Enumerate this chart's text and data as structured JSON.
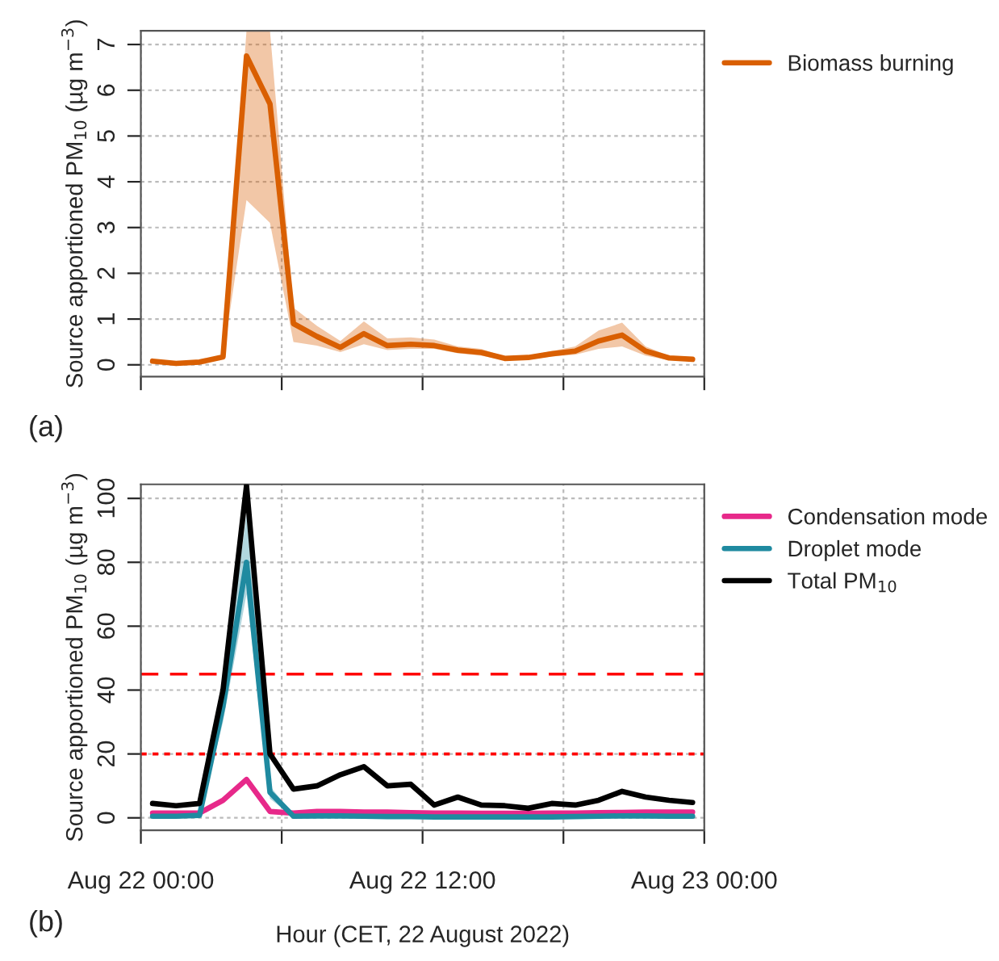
{
  "chart_data": [
    {
      "type": "line",
      "ylabel": "Source apportioned PM$_{10}$ (µg m$^{−3}$)",
      "annotations": [
        "(a)"
      ],
      "x": [
        "2022-08-22T00:30",
        "2022-08-22T01:30",
        "2022-08-22T02:30",
        "2022-08-22T03:30",
        "2022-08-22T04:30",
        "2022-08-22T05:30",
        "2022-08-22T06:30",
        "2022-08-22T07:30",
        "2022-08-22T08:30",
        "2022-08-22T09:30",
        "2022-08-22T10:30",
        "2022-08-22T11:30",
        "2022-08-22T12:30",
        "2022-08-22T13:30",
        "2022-08-22T14:30",
        "2022-08-22T15:30",
        "2022-08-22T16:30",
        "2022-08-22T17:30",
        "2022-08-22T18:30",
        "2022-08-22T19:30",
        "2022-08-22T20:30",
        "2022-08-22T21:30",
        "2022-08-22T22:30",
        "2022-08-22T23:30"
      ],
      "series": [
        {
          "name": "Biomass burning",
          "color": "#d95f02",
          "values": [
            0.08,
            0.03,
            0.06,
            0.17,
            6.75,
            5.7,
            0.9,
            0.62,
            0.38,
            0.68,
            0.42,
            0.45,
            0.42,
            0.32,
            0.27,
            0.14,
            0.16,
            0.24,
            0.3,
            0.52,
            0.65,
            0.3,
            0.15,
            0.12
          ],
          "lower": [
            0.05,
            0.02,
            0.04,
            0.15,
            3.6,
            3.1,
            0.5,
            0.42,
            0.28,
            0.45,
            0.32,
            0.35,
            0.35,
            0.25,
            0.2,
            0.1,
            0.12,
            0.18,
            0.22,
            0.35,
            0.4,
            0.2,
            0.1,
            0.09
          ],
          "upper": [
            0.1,
            0.05,
            0.08,
            0.2,
            7.3,
            7.3,
            1.25,
            0.85,
            0.52,
            0.95,
            0.58,
            0.6,
            0.55,
            0.4,
            0.35,
            0.18,
            0.2,
            0.3,
            0.4,
            0.75,
            0.92,
            0.4,
            0.2,
            0.15
          ]
        }
      ],
      "xlim": [
        "2022-08-22T00:00",
        "2022-08-23T00:00"
      ],
      "xticks": [
        {
          "value": "2022-08-22T00:00",
          "label": null
        },
        {
          "value": "2022-08-22T06:00",
          "label": null
        },
        {
          "value": "2022-08-22T12:00",
          "label": null
        },
        {
          "value": "2022-08-22T18:00",
          "label": null
        },
        {
          "value": "2022-08-23T00:00",
          "label": null
        }
      ],
      "ylim": [
        -0.26,
        7.3
      ],
      "yticks": [
        0,
        1,
        2,
        3,
        4,
        5,
        6,
        7
      ],
      "tick_labels": "y",
      "grid": true,
      "legend": "top right",
      "line_style": "solid"
    },
    {
      "type": "line",
      "xlabel": "Hour (CET, 22 August 2022)",
      "ylabel": "Source apportioned PM$_{10}$ (µg m$^{−3}$)",
      "annotations": [
        "(b)"
      ],
      "x": [
        "2022-08-22T00:30",
        "2022-08-22T01:30",
        "2022-08-22T02:30",
        "2022-08-22T03:30",
        "2022-08-22T04:30",
        "2022-08-22T05:30",
        "2022-08-22T06:30",
        "2022-08-22T07:30",
        "2022-08-22T08:30",
        "2022-08-22T09:30",
        "2022-08-22T10:30",
        "2022-08-22T11:30",
        "2022-08-22T12:30",
        "2022-08-22T13:30",
        "2022-08-22T14:30",
        "2022-08-22T15:30",
        "2022-08-22T16:30",
        "2022-08-22T17:30",
        "2022-08-22T18:30",
        "2022-08-22T19:30",
        "2022-08-22T20:30",
        "2022-08-22T21:30",
        "2022-08-22T22:30",
        "2022-08-22T23:30"
      ],
      "series": [
        {
          "name": "Condensation mode",
          "color": "#e7298a",
          "values": [
            1.5,
            1.5,
            1.5,
            5.5,
            12,
            2,
            1.5,
            2,
            2,
            1.8,
            1.8,
            1.6,
            1.5,
            1.5,
            1.4,
            1.4,
            1.4,
            1.5,
            1.5,
            1.6,
            1.7,
            1.8,
            1.8,
            1.8
          ]
        },
        {
          "name": "Droplet mode",
          "color": "#1f8aa0",
          "values": [
            0.5,
            0.5,
            0.8,
            35,
            80,
            8,
            0.5,
            0.6,
            0.6,
            0.5,
            0.4,
            0.4,
            0.3,
            0.3,
            0.3,
            0.3,
            0.3,
            0.3,
            0.4,
            0.5,
            0.6,
            0.6,
            0.5,
            0.5
          ],
          "lower": [
            0.2,
            0.2,
            0.5,
            30,
            70,
            6,
            0.2,
            0.3,
            0.3,
            0.2,
            0.1,
            0.1,
            0.1,
            0.1,
            0.1,
            0.1,
            0.1,
            0.1,
            0.1,
            0.2,
            0.3,
            0.3,
            0.2,
            0.2
          ],
          "upper": [
            0.8,
            0.8,
            1.1,
            40,
            95,
            10,
            0.8,
            0.9,
            0.9,
            0.8,
            0.7,
            0.7,
            0.6,
            0.6,
            0.6,
            0.6,
            0.6,
            0.6,
            0.7,
            0.8,
            0.9,
            0.9,
            0.8,
            0.8
          ]
        },
        {
          "name": "Total PM$_{10}$",
          "color": "#000000",
          "values": [
            4.5,
            3.8,
            4.5,
            40,
            104,
            20,
            9,
            10,
            13.5,
            16,
            10,
            10.5,
            4,
            6.5,
            4,
            3.8,
            3,
            4.5,
            4,
            5.5,
            8.3,
            6.5,
            5.5,
            4.8
          ]
        }
      ],
      "ref_lines": [
        {
          "axis": "y",
          "value": 45,
          "label": null,
          "color": "#ff0000",
          "line_style": "dashed"
        },
        {
          "axis": "y",
          "value": 20,
          "label": null,
          "color": "#ff0000",
          "line_style": "dotted"
        }
      ],
      "xlim": [
        "2022-08-22T00:00",
        "2022-08-23T00:00"
      ],
      "xticks": [
        {
          "value": "2022-08-22T00:00",
          "label": "Aug 22 00:00"
        },
        {
          "value": "2022-08-22T06:00",
          "label": null
        },
        {
          "value": "2022-08-22T12:00",
          "label": "Aug 22 12:00"
        },
        {
          "value": "2022-08-22T18:00",
          "label": null
        },
        {
          "value": "2022-08-23T00:00",
          "label": "Aug 23 00:00"
        }
      ],
      "ylim": [
        -3.9,
        104.4
      ],
      "yticks": [
        0,
        20,
        40,
        60,
        80,
        100
      ],
      "grid": true,
      "legend": "top right",
      "line_style": "solid"
    }
  ]
}
